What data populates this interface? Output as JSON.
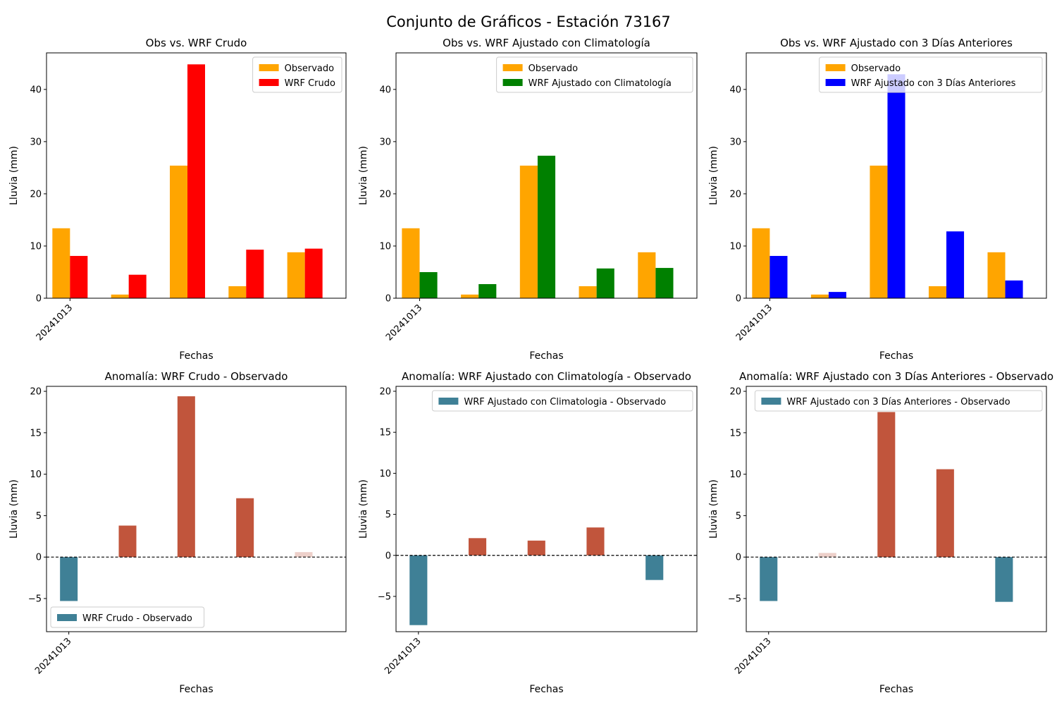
{
  "figure": {
    "title": "Conjunto de Gráficos - Estación 73167"
  },
  "chart_data": [
    {
      "type": "bar",
      "title": "Obs vs. WRF Crudo",
      "xlabel": "Fechas",
      "ylabel": "Lluvia (mm)",
      "x_tick_labels": [
        "20241013"
      ],
      "ylim": [
        0,
        47
      ],
      "yticks": [
        0,
        10,
        20,
        30,
        40
      ],
      "legend_position": "upper right",
      "series": [
        {
          "name": "Observado",
          "color": "#FFA500",
          "values": [
            13.4,
            0.7,
            25.4,
            2.3,
            8.8
          ]
        },
        {
          "name": "WRF Crudo",
          "color": "#FF0000",
          "values": [
            8.1,
            4.5,
            44.8,
            9.3,
            9.5
          ]
        }
      ]
    },
    {
      "type": "bar",
      "title": "Obs vs. WRF Ajustado con Climatología",
      "xlabel": "Fechas",
      "ylabel": "Lluvia (mm)",
      "x_tick_labels": [
        "20241013"
      ],
      "ylim": [
        0,
        47
      ],
      "yticks": [
        0,
        10,
        20,
        30,
        40
      ],
      "legend_position": "upper right",
      "series": [
        {
          "name": "Observado",
          "color": "#FFA500",
          "values": [
            13.4,
            0.7,
            25.4,
            2.3,
            8.8
          ]
        },
        {
          "name": "WRF Ajustado con Climatología",
          "color": "#008000",
          "values": [
            5.0,
            2.7,
            27.3,
            5.7,
            5.8
          ]
        }
      ]
    },
    {
      "type": "bar",
      "title": "Obs vs. WRF Ajustado con 3 Días Anteriores",
      "xlabel": "Fechas",
      "ylabel": "Lluvia (mm)",
      "x_tick_labels": [
        "20241013"
      ],
      "ylim": [
        0,
        47
      ],
      "yticks": [
        0,
        10,
        20,
        30,
        40
      ],
      "legend_position": "upper right",
      "series": [
        {
          "name": "Observado",
          "color": "#FFA500",
          "values": [
            13.4,
            0.7,
            25.4,
            2.3,
            8.8
          ]
        },
        {
          "name": "WRF Ajustado con 3 Días Anteriores",
          "color": "#0000FF",
          "values": [
            8.1,
            1.2,
            42.9,
            12.8,
            3.4
          ]
        }
      ]
    },
    {
      "type": "bar",
      "title": "Anomalía: WRF Crudo - Observado",
      "xlabel": "Fechas",
      "ylabel": "Lluvia (mm)",
      "x_tick_labels": [
        "20241013"
      ],
      "ylim": [
        -9,
        20.6
      ],
      "yticks": [
        -5,
        0,
        5,
        10,
        15,
        20
      ],
      "legend_position": "lower left",
      "zero_line": true,
      "legend": {
        "name": "WRF Crudo - Observado",
        "color": "#3F8096"
      },
      "values": [
        -5.3,
        3.8,
        19.4,
        7.1,
        0.6
      ],
      "bar_colors": [
        "#3F8096",
        "#C1553C",
        "#C1553C",
        "#C1553C",
        "#EDD0CA"
      ]
    },
    {
      "type": "bar",
      "title": "Anomalía: WRF Ajustado con Climatología - Observado",
      "xlabel": "Fechas",
      "ylabel": "Lluvia (mm)",
      "x_tick_labels": [
        "20241013"
      ],
      "ylim": [
        -9.3,
        20.6
      ],
      "yticks": [
        -5,
        0,
        5,
        10,
        15,
        20
      ],
      "legend_position": "upper right",
      "zero_line": true,
      "legend": {
        "name": "WRF Ajustado con Climatologia - Observado",
        "color": "#3F8096"
      },
      "values": [
        -8.5,
        2.1,
        1.8,
        3.4,
        -3.0
      ],
      "bar_colors": [
        "#3F8096",
        "#C1553C",
        "#C1553C",
        "#C1553C",
        "#3F8096"
      ]
    },
    {
      "type": "bar",
      "title": "Anomalía: WRF Ajustado con 3 Días Anteriores - Observado",
      "xlabel": "Fechas",
      "ylabel": "Lluvia (mm)",
      "x_tick_labels": [
        "20241013"
      ],
      "ylim": [
        -9,
        20.6
      ],
      "yticks": [
        -5,
        0,
        5,
        10,
        15,
        20
      ],
      "legend_position": "upper right",
      "zero_line": true,
      "legend": {
        "name": "WRF Ajustado con 3 Días Anteriores - Observado",
        "color": "#3F8096"
      },
      "values": [
        -5.3,
        0.5,
        17.5,
        10.6,
        -5.4
      ],
      "bar_colors": [
        "#3F8096",
        "#EDD0CA",
        "#C1553C",
        "#C1553C",
        "#3F8096"
      ]
    }
  ]
}
